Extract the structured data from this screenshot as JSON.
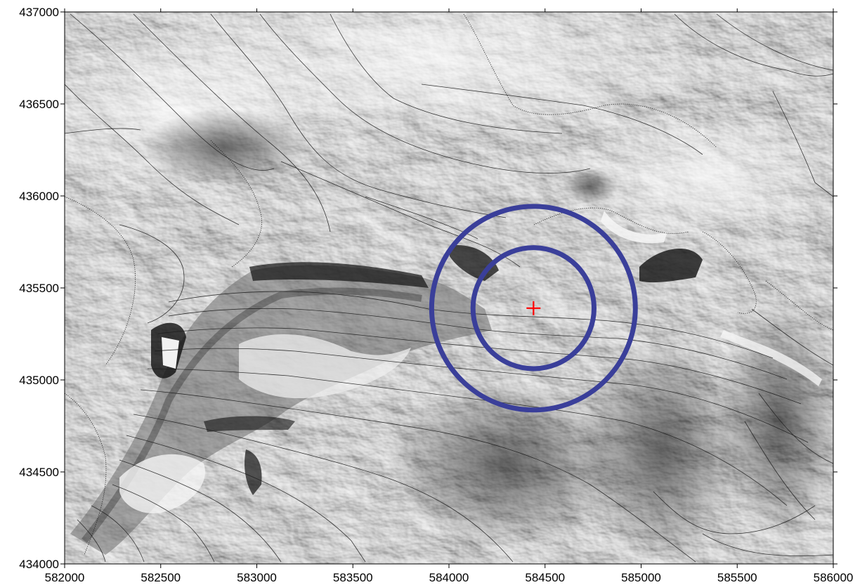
{
  "map": {
    "x_range": [
      582000,
      586000
    ],
    "y_range": [
      434000,
      437000
    ],
    "x_ticks": [
      "582000",
      "582500",
      "583000",
      "583500",
      "584000",
      "584500",
      "585000",
      "585500",
      "586000"
    ],
    "y_ticks": [
      "437000",
      "436500",
      "436000",
      "435500",
      "435000",
      "434500",
      "434000"
    ],
    "x_tick_values": [
      582000,
      582500,
      583000,
      583500,
      584000,
      584500,
      585000,
      585500,
      586000
    ],
    "y_tick_values": [
      437000,
      436500,
      436000,
      435500,
      435000,
      434500,
      434000
    ],
    "marker": {
      "x": 584440,
      "y": 435390,
      "color": "#ff0000",
      "symbol": "+"
    },
    "buffer_rings": [
      {
        "center_x": 584440,
        "center_y": 435390,
        "radius": 315,
        "color": "#3a3f9a"
      },
      {
        "center_x": 584440,
        "center_y": 435390,
        "radius": 530,
        "color": "#3a3f9a"
      }
    ],
    "basemap": "grayscale hillshade relief with elevation contour lines"
  }
}
